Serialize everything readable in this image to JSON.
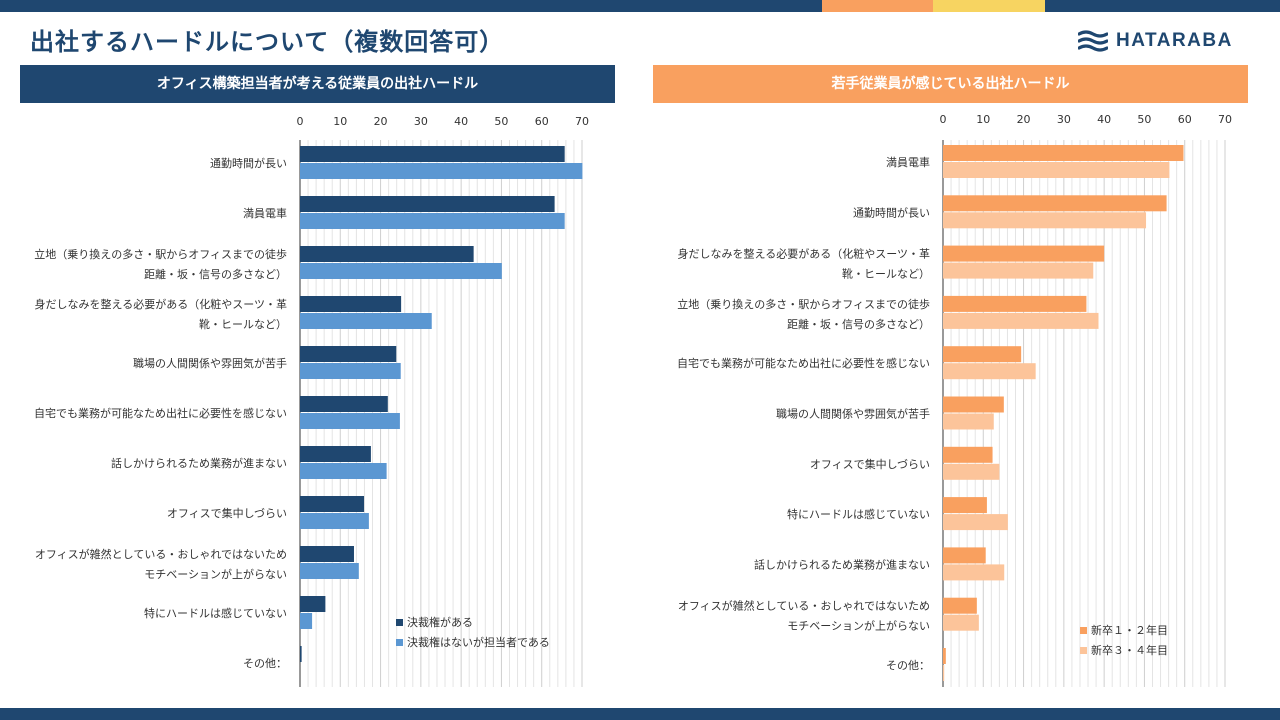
{
  "colors": {
    "navy": "#1f4770",
    "mid_blue": "#5b97d2",
    "orange": "#f9a05f",
    "light_orange": "#fcc49a",
    "topbar_orange": "#f9a05f",
    "topbar_yellow": "#f7d461"
  },
  "header": {
    "title": "出社するハードルについて（複数回答可）",
    "logo_text": "HATARABA",
    "logo_icon": "wave-logo-icon"
  },
  "chart_data": [
    {
      "type": "bar",
      "orientation": "horizontal",
      "title": "オフィス構築担当者が考える従業員の出社ハードル",
      "xlim": [
        0,
        70
      ],
      "xticks": [
        0,
        10,
        20,
        30,
        40,
        50,
        60,
        70
      ],
      "grid": true,
      "legend_position": "bottom-right",
      "categories": [
        [
          "通勤時間が長い"
        ],
        [
          "満員電車"
        ],
        [
          "立地（乗り換えの多さ・駅からオフィスまでの徒歩",
          "距離・坂・信号の多さなど）"
        ],
        [
          "身だしなみを整える必要がある（化粧やスーツ・革",
          "靴・ヒールなど）"
        ],
        [
          "職場の人間関係や雰囲気が苦手"
        ],
        [
          "自宅でも業務が可能なため出社に必要性を感じない"
        ],
        [
          "話しかけられるため業務が進まない"
        ],
        [
          "オフィスで集中しづらい"
        ],
        [
          "オフィスが雑然としている・おしゃれではないため",
          "モチベーションが上がらない"
        ],
        [
          "特にハードルは感じていない"
        ],
        [
          "その他："
        ]
      ],
      "series": [
        {
          "name": "決裁権がある",
          "color": "#1f4770",
          "values": [
            65.7,
            63.2,
            43.1,
            25.1,
            23.9,
            21.8,
            17.6,
            15.9,
            13.4,
            6.3,
            0.4
          ]
        },
        {
          "name": "決裁権はないが担当者である",
          "color": "#5b97d2",
          "values": [
            70.1,
            65.7,
            50.1,
            32.7,
            25.0,
            24.8,
            21.5,
            17.1,
            14.6,
            3.0,
            0.0
          ]
        }
      ]
    },
    {
      "type": "bar",
      "orientation": "horizontal",
      "title": "若手従業員が感じている出社ハードル",
      "xlim": [
        0,
        70
      ],
      "xticks": [
        0,
        10,
        20,
        30,
        40,
        50,
        60,
        70
      ],
      "grid": true,
      "legend_position": "bottom-right",
      "categories": [
        [
          "満員電車"
        ],
        [
          "通勤時間が長い"
        ],
        [
          "身だしなみを整える必要がある（化粧やスーツ・革",
          "靴・ヒールなど）"
        ],
        [
          "立地（乗り換えの多さ・駅からオフィスまでの徒歩",
          "距離・坂・信号の多さなど）"
        ],
        [
          "自宅でも業務が可能なため出社に必要性を感じない"
        ],
        [
          "職場の人間関係や雰囲気が苦手"
        ],
        [
          "オフィスで集中しづらい"
        ],
        [
          "特にハードルは感じていない"
        ],
        [
          "話しかけられるため業務が進まない"
        ],
        [
          "オフィスが雑然としている・おしゃれではないため",
          "モチベーションが上がらない"
        ],
        [
          "その他："
        ]
      ],
      "series": [
        {
          "name": "新卒１・２年目",
          "color": "#f9a05f",
          "values": [
            59.7,
            55.5,
            40.0,
            35.6,
            19.4,
            15.1,
            12.3,
            10.9,
            10.6,
            8.4,
            0.7
          ]
        },
        {
          "name": "新卒３・４年目",
          "color": "#fcc49a",
          "values": [
            56.2,
            50.4,
            37.3,
            38.6,
            23.0,
            12.6,
            14.0,
            16.1,
            15.2,
            8.9,
            0.3
          ]
        }
      ]
    }
  ]
}
